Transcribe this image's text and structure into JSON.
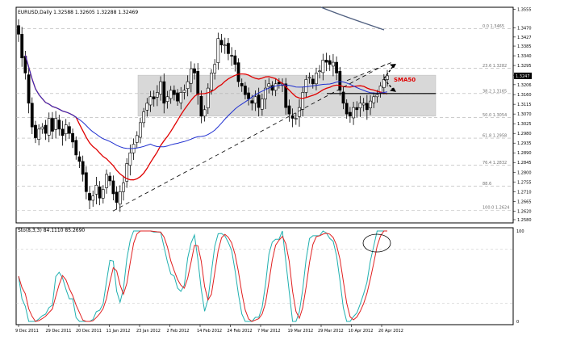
{
  "main_panel": {
    "header": "EURUSD,Daily  1.32588 1.32605 1.32288 1.32469",
    "price_marker": "1.3247",
    "sma_label": "SMA50",
    "colors": {
      "background": "#ffffff",
      "grid": "#b0b0b0",
      "candle": "#000000",
      "sma50": "#e00000",
      "ma_blue": "#2030d0",
      "ma_slate": "#506080",
      "range_box": "#d8d8d8",
      "sma_label": "#e00000"
    }
  },
  "chart_data": [
    {
      "type": "candlestick",
      "title": "EURUSD,Daily",
      "y_ticks": [
        "1.3555",
        "1.3470",
        "1.3427",
        "1.3385",
        "1.3340",
        "1.3295",
        "1.3250",
        "1.3206",
        "1.3160",
        "1.3115",
        "1.3070",
        "1.3025",
        "1.2980",
        "1.2935",
        "1.2890",
        "1.2845",
        "1.2800",
        "1.2755",
        "1.2710",
        "1.2665",
        "1.2620",
        "1.2580"
      ],
      "ylim": [
        1.2565,
        1.3565
      ],
      "x_ticks": [
        "9 Dec 2011",
        "29 Dec 2011",
        "20 Dec 2011",
        "11 Jan 2012",
        "23 Jan 2012",
        "2 Feb 2012",
        "14 Feb 2012",
        "24 Feb 2012",
        "7 Mar 2012",
        "19 Mar 2012",
        "29 Mar 2012",
        "10 Apr 2012",
        "20 Apr 2012"
      ],
      "fibonacci_levels": [
        {
          "label": "0.0 1.3465",
          "value": 1.3465
        },
        {
          "label": "23.6 1.3282",
          "value": 1.3282
        },
        {
          "label": "38.2 1.3165",
          "value": 1.3165
        },
        {
          "label": "50.0 1.3054",
          "value": 1.3054
        },
        {
          "label": "61.8 1.2958",
          "value": 1.2958
        },
        {
          "label": "76.4 1.2832",
          "value": 1.2832
        },
        {
          "label": "88.6",
          "value": 1.2735
        },
        {
          "label": "100.0 1.2624",
          "value": 1.2624
        }
      ],
      "range_box": {
        "low": 1.306,
        "high": 1.325
      },
      "support_line": 1.3165,
      "series": [
        {
          "name": "SMA50",
          "role": "moving-average"
        },
        {
          "role": "moving-average"
        },
        {
          "role": "moving-average"
        },
        {
          "role": "price",
          "close": [
            1.344,
            1.333,
            1.326,
            1.312,
            1.301,
            1.296,
            1.3,
            1.301,
            1.298,
            1.305,
            1.299,
            1.305,
            1.3,
            1.297,
            1.302,
            1.298,
            1.294,
            1.288,
            1.285,
            1.279,
            1.271,
            1.267,
            1.269,
            1.274,
            1.268,
            1.272,
            1.279,
            1.276,
            1.27,
            1.266,
            1.271,
            1.275,
            1.284,
            1.289,
            1.293,
            1.297,
            1.303,
            1.308,
            1.312,
            1.315,
            1.314,
            1.317,
            1.322,
            1.312,
            1.315,
            1.318,
            1.316,
            1.313,
            1.317,
            1.318,
            1.322,
            1.328,
            1.326,
            1.316,
            1.306,
            1.309,
            1.319,
            1.326,
            1.33,
            1.342,
            1.339,
            1.339,
            1.335,
            1.334,
            1.33,
            1.322,
            1.32,
            1.316,
            1.314,
            1.312,
            1.315,
            1.31,
            1.314,
            1.319,
            1.321,
            1.318,
            1.321,
            1.321,
            1.321,
            1.31,
            1.307,
            1.305,
            1.305,
            1.31,
            1.317,
            1.323,
            1.324,
            1.321,
            1.326,
            1.327,
            1.332,
            1.331,
            1.33,
            1.331,
            1.326,
            1.318,
            1.312,
            1.307,
            1.306,
            1.31,
            1.309,
            1.312,
            1.312,
            1.309,
            1.313,
            1.315,
            1.316,
            1.32,
            1.323,
            1.3247
          ]
        }
      ]
    },
    {
      "type": "line",
      "title": "Sto(8,3,3) 84.1110 85.2690",
      "y_ticks": [
        "100",
        "0"
      ],
      "ylim": [
        0,
        100
      ],
      "series": [
        {
          "role": "%K",
          "color": "#20b0b0"
        },
        {
          "role": "%D",
          "color": "#e02020"
        }
      ]
    }
  ]
}
